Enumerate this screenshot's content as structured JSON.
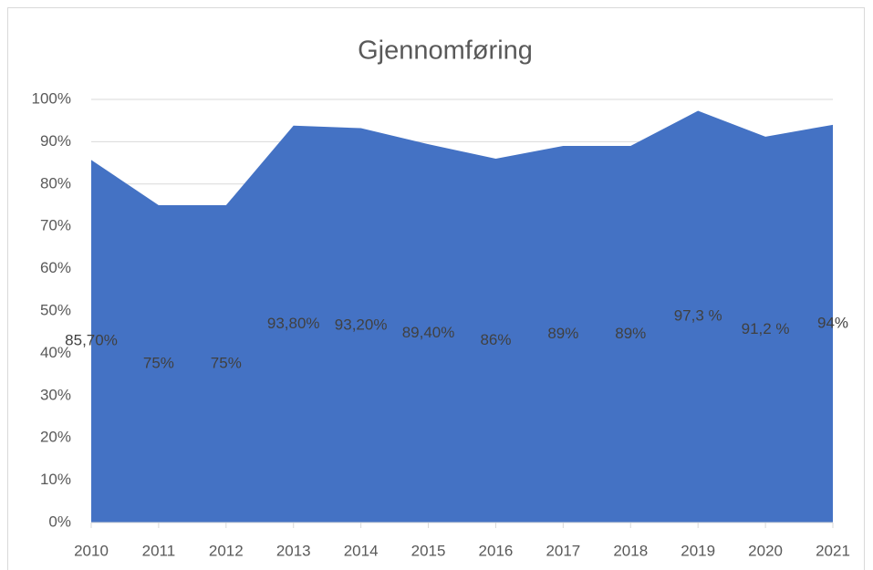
{
  "chart_data": {
    "type": "area",
    "title": "Gjennomføring",
    "categories": [
      "2010",
      "2011",
      "2012",
      "2013",
      "2014",
      "2015",
      "2016",
      "2017",
      "2018",
      "2019",
      "2020",
      "2021"
    ],
    "values": [
      85.7,
      75,
      75,
      93.8,
      93.2,
      89.4,
      86,
      89,
      89,
      97.3,
      91.2,
      94
    ],
    "value_labels": [
      "85,70%",
      "75%",
      "75%",
      "93,80%",
      "93,20%",
      "89,40%",
      "86%",
      "89%",
      "89%",
      "97,3 %",
      "91,2 %",
      "94%"
    ],
    "color": "#4472c4",
    "ylim": [
      0,
      100
    ],
    "yticks": [
      {
        "value": 0,
        "label": "0%"
      },
      {
        "value": 10,
        "label": "10%"
      },
      {
        "value": 20,
        "label": "20%"
      },
      {
        "value": 30,
        "label": "30%"
      },
      {
        "value": 40,
        "label": "40%"
      },
      {
        "value": 50,
        "label": "50%"
      },
      {
        "value": 60,
        "label": "60%"
      },
      {
        "value": 70,
        "label": "70%"
      },
      {
        "value": 80,
        "label": "80%"
      },
      {
        "value": 90,
        "label": "90%"
      },
      {
        "value": 100,
        "label": "100%"
      }
    ],
    "grid": true
  }
}
